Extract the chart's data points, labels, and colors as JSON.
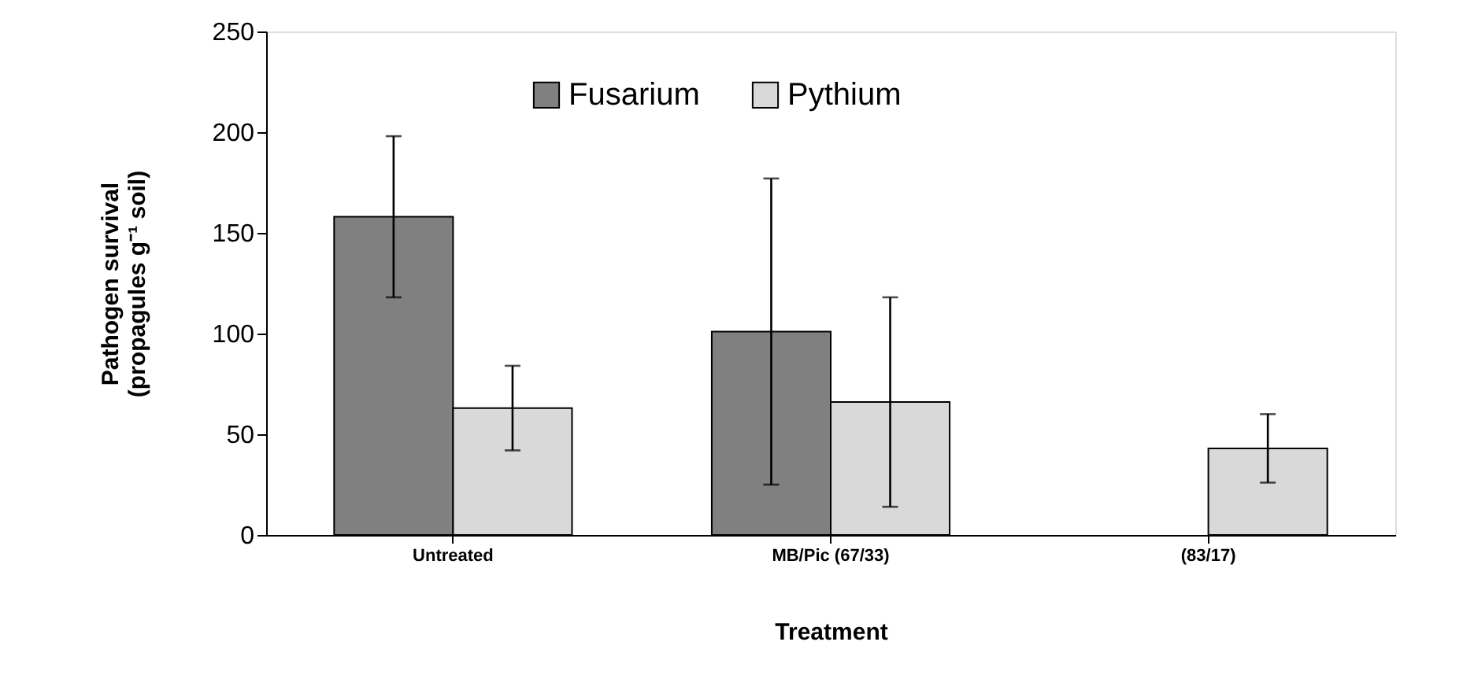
{
  "chart_data": {
    "type": "bar",
    "xlabel": "Treatment",
    "ylabel": "Pathogen survival\n(propagules g⁻¹ soil)",
    "categories": [
      "Untreated",
      "MB/Pic (67/33)",
      "(83/17)"
    ],
    "series": [
      {
        "name": "Fusarium",
        "color": "#808080",
        "values": [
          158,
          101,
          null
        ],
        "errors": [
          40,
          76,
          null
        ]
      },
      {
        "name": "Pythium",
        "color": "#d9d9d9",
        "values": [
          63,
          66,
          43
        ],
        "errors": [
          21,
          52,
          17
        ]
      }
    ],
    "ylim": [
      0,
      250
    ],
    "yticks": [
      0,
      50,
      100,
      150,
      200,
      250
    ],
    "grid": false,
    "legend": "top"
  }
}
